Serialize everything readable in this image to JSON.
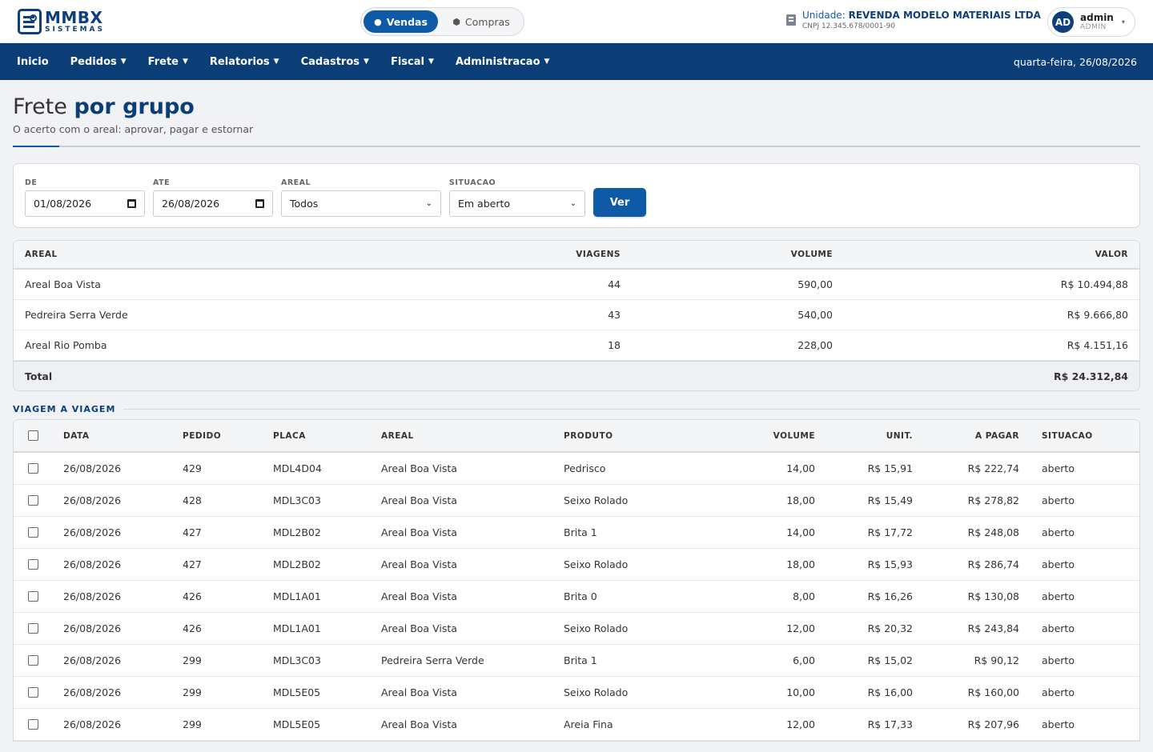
{
  "brand": {
    "name": "MMBX",
    "sub": "SISTEMAS"
  },
  "mode": {
    "vendas": "Vendas",
    "compras": "Compras"
  },
  "unit": {
    "label": "Unidade:",
    "name": "REVENDA MODELO MATERIAIS LTDA",
    "cnpj": "CNPJ 12.345.678/0001-90"
  },
  "user": {
    "initials": "AD",
    "name": "admin",
    "role": "ADMIN"
  },
  "nav": {
    "items": [
      "Inicio",
      "Pedidos",
      "Frete",
      "Relatorios",
      "Cadastros",
      "Fiscal",
      "Administracao"
    ],
    "date": "quarta-feira, 26/08/2026"
  },
  "page": {
    "title_light": "Frete",
    "title_bold": "por grupo",
    "subtitle": "O acerto com o areal: aprovar, pagar e estornar"
  },
  "filters": {
    "de_label": "DE",
    "de_value": "01/08/2026",
    "ate_label": "ATE",
    "ate_value": "26/08/2026",
    "areal_label": "AREAL",
    "areal_value": "Todos",
    "situacao_label": "SITUACAO",
    "situacao_value": "Em aberto",
    "submit": "Ver"
  },
  "summary": {
    "headers": [
      "AREAL",
      "VIAGENS",
      "VOLUME",
      "VALOR"
    ],
    "rows": [
      [
        "Areal Boa Vista",
        "44",
        "590,00",
        "R$ 10.494,88"
      ],
      [
        "Pedreira Serra Verde",
        "43",
        "540,00",
        "R$ 9.666,80"
      ],
      [
        "Areal Rio Pomba",
        "18",
        "228,00",
        "R$ 4.151,16"
      ]
    ],
    "total_label": "Total",
    "total_value": "R$ 24.312,84"
  },
  "trips": {
    "section_label": "VIAGEM A VIAGEM",
    "headers": [
      "DATA",
      "PEDIDO",
      "PLACA",
      "AREAL",
      "PRODUTO",
      "VOLUME",
      "UNIT.",
      "A PAGAR",
      "SITUACAO"
    ],
    "rows": [
      [
        "26/08/2026",
        "429",
        "MDL4D04",
        "Areal Boa Vista",
        "Pedrisco",
        "14,00",
        "R$ 15,91",
        "R$ 222,74",
        "aberto"
      ],
      [
        "26/08/2026",
        "428",
        "MDL3C03",
        "Areal Boa Vista",
        "Seixo Rolado",
        "18,00",
        "R$ 15,49",
        "R$ 278,82",
        "aberto"
      ],
      [
        "26/08/2026",
        "427",
        "MDL2B02",
        "Areal Boa Vista",
        "Brita 1",
        "14,00",
        "R$ 17,72",
        "R$ 248,08",
        "aberto"
      ],
      [
        "26/08/2026",
        "427",
        "MDL2B02",
        "Areal Boa Vista",
        "Seixo Rolado",
        "18,00",
        "R$ 15,93",
        "R$ 286,74",
        "aberto"
      ],
      [
        "26/08/2026",
        "426",
        "MDL1A01",
        "Areal Boa Vista",
        "Brita 0",
        "8,00",
        "R$ 16,26",
        "R$ 130,08",
        "aberto"
      ],
      [
        "26/08/2026",
        "426",
        "MDL1A01",
        "Areal Boa Vista",
        "Seixo Rolado",
        "12,00",
        "R$ 20,32",
        "R$ 243,84",
        "aberto"
      ],
      [
        "26/08/2026",
        "299",
        "MDL3C03",
        "Pedreira Serra Verde",
        "Brita 1",
        "6,00",
        "R$ 15,02",
        "R$ 90,12",
        "aberto"
      ],
      [
        "26/08/2026",
        "299",
        "MDL5E05",
        "Areal Boa Vista",
        "Seixo Rolado",
        "10,00",
        "R$ 16,00",
        "R$ 160,00",
        "aberto"
      ],
      [
        "26/08/2026",
        "299",
        "MDL5E05",
        "Areal Boa Vista",
        "Areia Fina",
        "12,00",
        "R$ 17,33",
        "R$ 207,96",
        "aberto"
      ]
    ]
  }
}
